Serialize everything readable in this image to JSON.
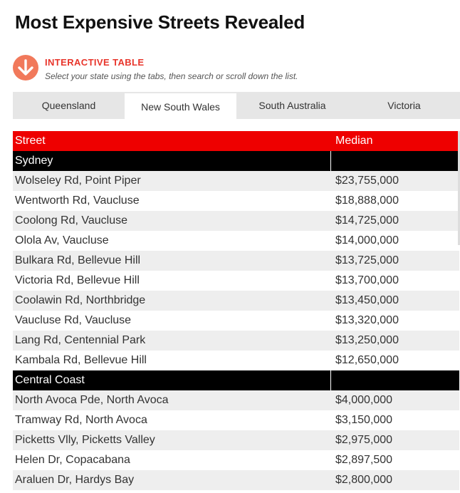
{
  "page": {
    "title": "Most Expensive Streets Revealed"
  },
  "intro": {
    "heading": "INTERACTIVE TABLE",
    "subtitle": "Select your state using the tabs, then search or scroll down the list.",
    "icon": "arrow-down-circle-icon",
    "icon_color": "#f1795b",
    "heading_color": "#e8352b"
  },
  "tabs": [
    {
      "label": "Queensland",
      "active": false
    },
    {
      "label": "New South Wales",
      "active": true
    },
    {
      "label": "South Australia",
      "active": false
    },
    {
      "label": "Victoria",
      "active": false
    }
  ],
  "table": {
    "header_color": "#ee0000",
    "columns": [
      "Street",
      "Median"
    ],
    "groups": [
      {
        "name": "Sydney",
        "rows": [
          [
            "Wolseley Rd, Point Piper",
            "$23,755,000"
          ],
          [
            "Wentworth Rd, Vaucluse",
            "$18,888,000"
          ],
          [
            "Coolong Rd, Vaucluse",
            "$14,725,000"
          ],
          [
            "Olola Av, Vaucluse",
            "$14,000,000"
          ],
          [
            "Bulkara Rd, Bellevue Hill",
            "$13,725,000"
          ],
          [
            "Victoria Rd, Bellevue Hill",
            "$13,700,000"
          ],
          [
            "Coolawin Rd, Northbridge",
            "$13,450,000"
          ],
          [
            "Vaucluse Rd, Vaucluse",
            "$13,320,000"
          ],
          [
            "Lang Rd, Centennial Park",
            "$13,250,000"
          ],
          [
            "Kambala Rd, Bellevue Hill",
            "$12,650,000"
          ]
        ]
      },
      {
        "name": "Central Coast",
        "rows": [
          [
            "North Avoca Pde, North Avoca",
            "$4,000,000"
          ],
          [
            "Tramway Rd, North Avoca",
            "$3,150,000"
          ],
          [
            "Picketts Vlly, Picketts Valley",
            "$2,975,000"
          ],
          [
            "Helen Dr, Copacabana",
            "$2,897,500"
          ],
          [
            "Araluen Dr, Hardys Bay",
            "$2,800,000"
          ]
        ]
      }
    ]
  }
}
